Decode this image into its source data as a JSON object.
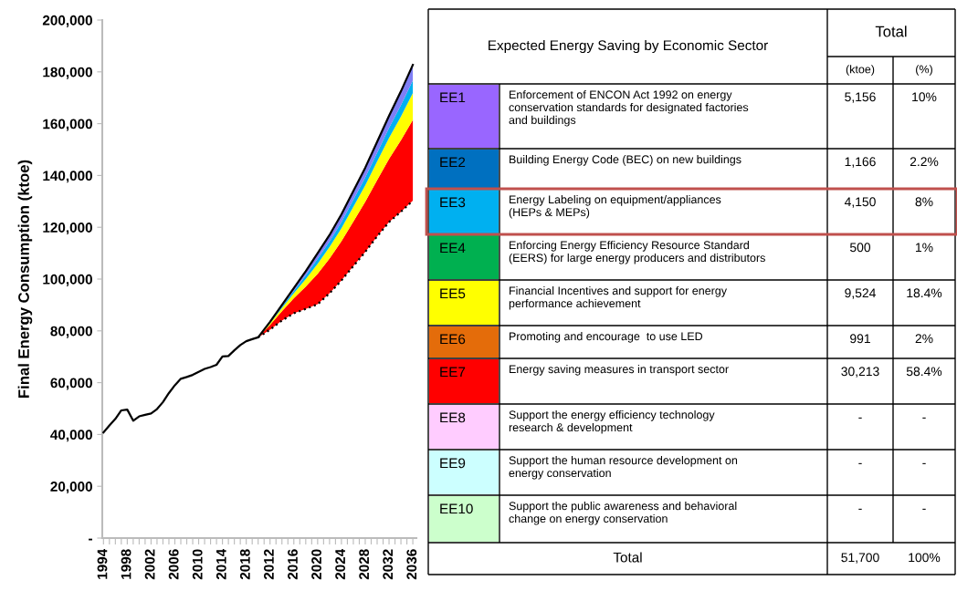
{
  "chart_data": [
    {
      "type": "area",
      "ylabel": "Final Energy Consumption (ktoe)",
      "categories": [
        "1994",
        null,
        null,
        null,
        "1998",
        null,
        null,
        null,
        "2002",
        null,
        null,
        null,
        "2006",
        null,
        null,
        null,
        "2010",
        null,
        null,
        null,
        "2014",
        null,
        null,
        null,
        "2018",
        null,
        null,
        null,
        "2012",
        null,
        null,
        null,
        "2016",
        null,
        null,
        null,
        "2020",
        null,
        null,
        null,
        "2024",
        null,
        null,
        null,
        "2028",
        null,
        null,
        null,
        "2032",
        null,
        null,
        null,
        "2036"
      ],
      "ylim": [
        0,
        200000
      ],
      "yticks": [
        {
          "value": 0,
          "label": "-"
        },
        {
          "value": 20000,
          "label": "20,000"
        },
        {
          "value": 40000,
          "label": "40,000"
        },
        {
          "value": 60000,
          "label": "60,000"
        },
        {
          "value": 80000,
          "label": "80,000"
        },
        {
          "value": 100000,
          "label": "100,000"
        },
        {
          "value": 120000,
          "label": "120,000"
        },
        {
          "value": 140000,
          "label": "140,000"
        },
        {
          "value": 160000,
          "label": "160,000"
        },
        {
          "value": 180000,
          "label": "180,000"
        },
        {
          "value": 200000,
          "label": "200,000"
        }
      ],
      "stacked": true,
      "grid": false,
      "legend": false,
      "series": [
        {
          "type": "line",
          "color": "#000000",
          "line_style": "solid",
          "values": [
            40800,
            43500,
            46000,
            49300,
            49600,
            45300,
            47000,
            47600,
            48100,
            49800,
            52500,
            56000,
            59000,
            61500,
            62200,
            63000,
            64200,
            65300,
            66000,
            66900,
            70100,
            70300,
            72500,
            74500,
            76000,
            76800,
            77500,
            null,
            83500,
            null,
            90000,
            null,
            96500,
            null,
            103000,
            null,
            110000,
            null,
            117000,
            null,
            125000,
            null,
            134000,
            null,
            143000,
            null,
            153000,
            null,
            163000,
            null,
            172500,
            null,
            182700
          ]
        },
        {
          "type": "area",
          "color": "#ffffff",
          "line_style": "dotted",
          "values": [
            null,
            null,
            null,
            null,
            null,
            null,
            null,
            null,
            null,
            null,
            null,
            null,
            null,
            null,
            null,
            null,
            null,
            null,
            null,
            null,
            null,
            null,
            null,
            null,
            null,
            null,
            77500,
            null,
            80500,
            null,
            84000,
            null,
            86800,
            null,
            88500,
            null,
            90300,
            null,
            94500,
            null,
            99500,
            null,
            105000,
            null,
            110500,
            null,
            116500,
            null,
            122000,
            null,
            126000,
            null,
            130300
          ]
        },
        {
          "type": "area",
          "color": "#ff0000",
          "values": [
            null,
            null,
            null,
            null,
            null,
            null,
            null,
            null,
            null,
            null,
            null,
            null,
            null,
            null,
            null,
            null,
            null,
            null,
            null,
            null,
            null,
            null,
            null,
            null,
            null,
            null,
            0,
            null,
            1800,
            null,
            3600,
            null,
            5800,
            null,
            8600,
            null,
            11700,
            null,
            13400,
            null,
            15100,
            null,
            17200,
            null,
            19300,
            null,
            21700,
            null,
            24400,
            null,
            27600,
            null,
            31100
          ]
        },
        {
          "type": "area",
          "color": "#ffff00",
          "values": [
            null,
            null,
            null,
            null,
            null,
            null,
            null,
            null,
            null,
            null,
            null,
            null,
            null,
            null,
            null,
            null,
            null,
            null,
            null,
            null,
            null,
            null,
            null,
            null,
            null,
            null,
            0,
            null,
            600,
            null,
            1200,
            null,
            1900,
            null,
            2900,
            null,
            3900,
            null,
            4500,
            null,
            5000,
            null,
            5700,
            null,
            6400,
            null,
            7200,
            null,
            8100,
            null,
            9200,
            null,
            10400
          ]
        },
        {
          "type": "area",
          "color": "#00b0f0",
          "values": [
            null,
            null,
            null,
            null,
            null,
            null,
            null,
            null,
            null,
            null,
            null,
            null,
            null,
            null,
            null,
            null,
            null,
            null,
            null,
            null,
            null,
            null,
            null,
            null,
            null,
            null,
            0,
            null,
            300,
            null,
            600,
            null,
            900,
            null,
            1400,
            null,
            1900,
            null,
            2100,
            null,
            2400,
            null,
            2700,
            null,
            3100,
            null,
            3400,
            null,
            3900,
            null,
            4400,
            null,
            4900
          ]
        },
        {
          "type": "area",
          "color": "#7f7ff5",
          "values": [
            null,
            null,
            null,
            null,
            null,
            null,
            null,
            null,
            null,
            null,
            null,
            null,
            null,
            null,
            null,
            null,
            null,
            null,
            null,
            null,
            null,
            null,
            null,
            null,
            null,
            null,
            0,
            null,
            300,
            null,
            600,
            null,
            1100,
            null,
            1600,
            null,
            2200,
            null,
            2500,
            null,
            3000,
            null,
            3400,
            null,
            3700,
            null,
            4200,
            null,
            4600,
            null,
            5300,
            null,
            6000
          ]
        }
      ]
    },
    {
      "type": "other",
      "title": "Expected Energy Saving by Economic Sector",
      "legend_title": "Total",
      "xlabel": "Total",
      "categories": [
        "EE1",
        "EE2",
        "EE3",
        "EE4",
        "EE5",
        "EE6",
        "EE7",
        "EE8",
        "EE9",
        "EE10"
      ],
      "colors": [
        "#9966ff",
        "#0070c0",
        "#00b0f0",
        "#00b050",
        "#ffff00",
        "#e46c0a",
        "#ff0000",
        "#ffccff",
        "#ccffff",
        "#ccffcc"
      ],
      "annotations": [
        "Enforcement of ENCON Act 1992 on energy\nconservation standards for designated factories\nand buildings",
        "Building Energy Code (BEC) on new buildings",
        "Energy Labeling on equipment/appliances\n(HEPs & MEPs)",
        "Enforcing Energy Efficiency Resource Standard\n(EERS) for large energy producers and distributors",
        "Financial Incentives and support for energy\nperformance achievement",
        "Promoting and encourage  to use LED",
        "Energy saving measures in transport sector",
        "Support the energy efficiency technology\nresearch & development",
        "Support the human resource development on\nenergy conservation",
        "Support the public awareness and behavioral\nchange on energy conservation"
      ],
      "series": [
        {
          "name": "(ktoe)",
          "values": [
            5156,
            1166,
            4150,
            500,
            9524,
            991,
            30213,
            null,
            null,
            null
          ],
          "value_labels": [
            "5,156",
            "1,166",
            "4,150",
            "500",
            "9,524",
            "991",
            "30,213",
            "-",
            "-",
            "-"
          ]
        },
        {
          "name": "(%)",
          "values": [
            10,
            2.2,
            8,
            1,
            18.4,
            2,
            58.4,
            null,
            null,
            null
          ],
          "value_labels": [
            "10%",
            "2.2%",
            "8%",
            "1%",
            "18.4%",
            "2%",
            "58.4%",
            "-",
            "-",
            "-"
          ]
        }
      ],
      "totals": [
        "51,700",
        "100%"
      ]
    }
  ]
}
